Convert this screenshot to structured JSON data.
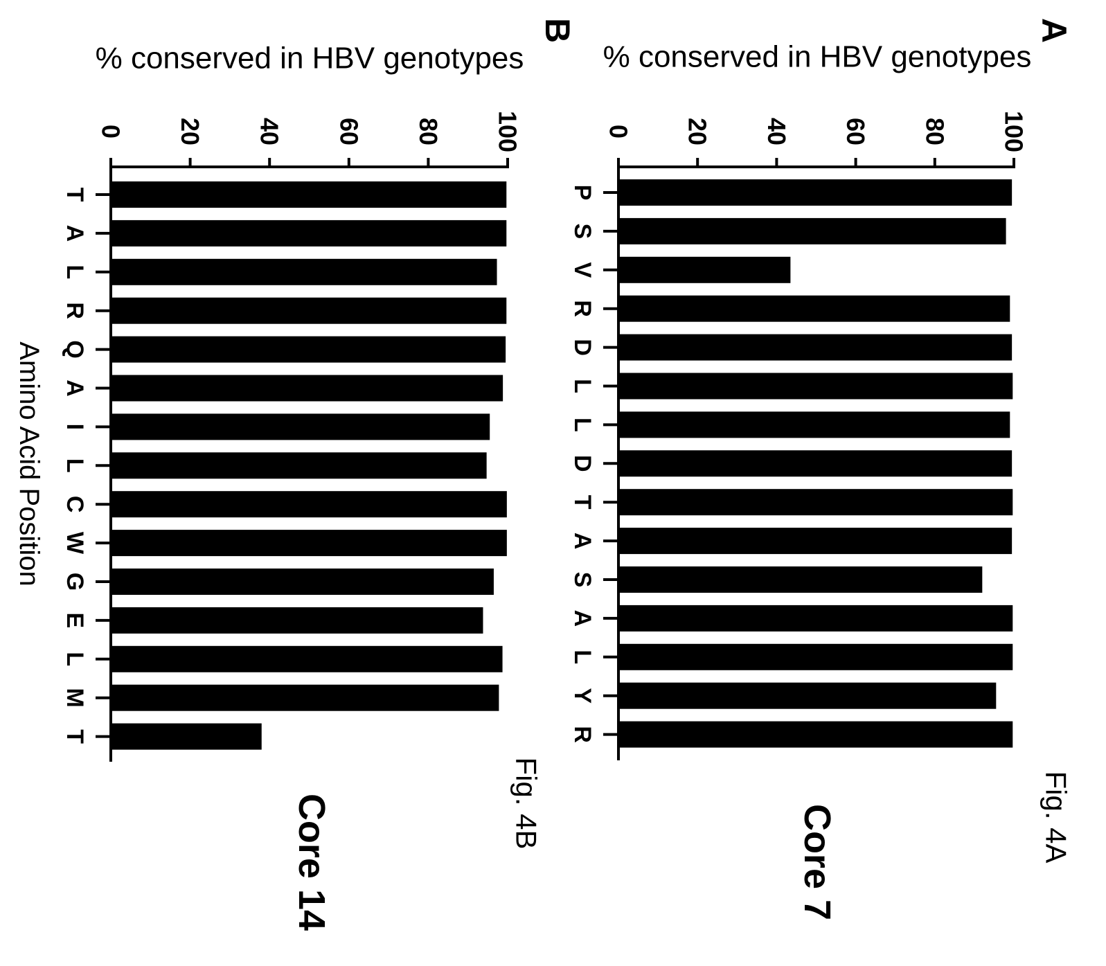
{
  "figure": {
    "xaxis_title": "Amino Acid Position"
  },
  "chart_data": [
    {
      "type": "bar",
      "panel_letter": "A",
      "figure_label": "Fig. 4A",
      "title": "Core 7",
      "ylabel": "% conserved in HBV genotypes",
      "xlabel": "",
      "ylim": [
        0,
        100
      ],
      "yticks": [
        0,
        20,
        40,
        60,
        80,
        100
      ],
      "categories": [
        "P",
        "S",
        "V",
        "R",
        "D",
        "L",
        "L",
        "D",
        "T",
        "A",
        "S",
        "A",
        "L",
        "Y",
        "R"
      ],
      "values": [
        99.5,
        98,
        43.5,
        99,
        99.5,
        99.7,
        99,
        99.5,
        99.7,
        99.5,
        92,
        99.7,
        99.7,
        95.5,
        99.7
      ],
      "grid": false,
      "bar_color": "#000000"
    },
    {
      "type": "bar",
      "panel_letter": "B",
      "figure_label": "Fig. 4B",
      "title": "Core 14",
      "ylabel": "% conserved in HBV genotypes",
      "xlabel": "Amino Acid Position",
      "ylim": [
        0,
        100
      ],
      "yticks": [
        0,
        20,
        40,
        60,
        80,
        100
      ],
      "categories": [
        "T",
        "A",
        "L",
        "R",
        "Q",
        "A",
        "I",
        "L",
        "C",
        "W",
        "G",
        "E",
        "L",
        "M",
        "T"
      ],
      "values": [
        99.7,
        99.7,
        97.3,
        99.7,
        99.5,
        98.8,
        95.5,
        94.7,
        99.8,
        99.8,
        96.5,
        93.8,
        98.7,
        97.8,
        38
      ],
      "grid": false,
      "bar_color": "#000000"
    }
  ]
}
